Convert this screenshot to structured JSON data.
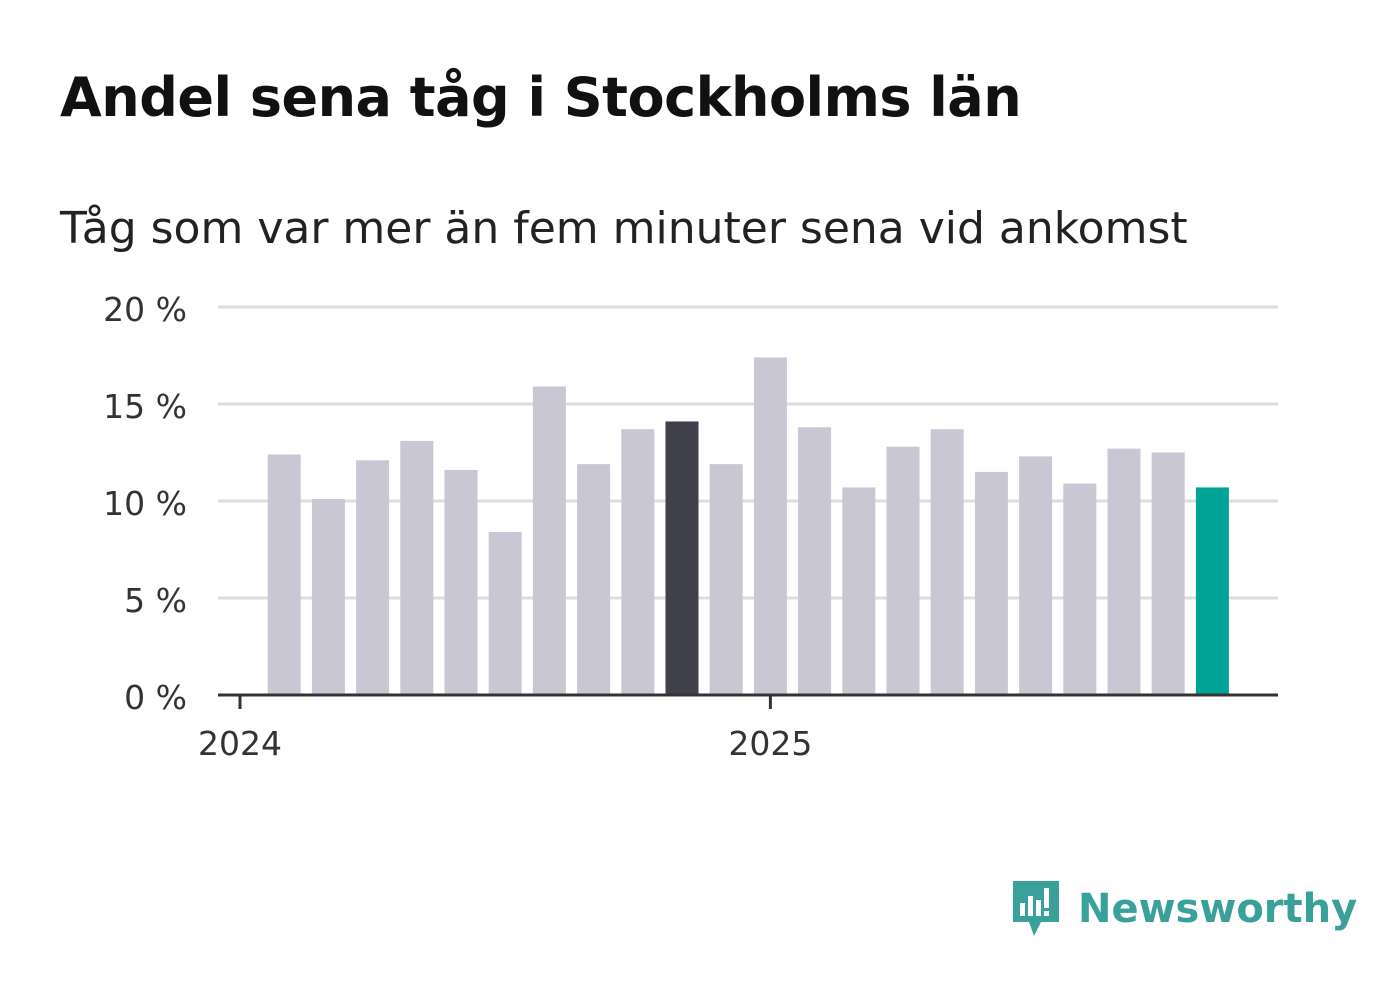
{
  "title": "Andel sena tåg i Stockholms län",
  "subtitle": "Tåg som var mer än fem minuter sena vid ankomst",
  "brand": {
    "name": "Newsworthy",
    "color": "#3aa09a",
    "icon": "newsworthy-logo-icon"
  },
  "colors": {
    "bar": "#c9c7d3",
    "highlight_dark": "#403f4c",
    "highlight_accent": "#00a497",
    "grid": "#dddddd",
    "axis": "#333333"
  },
  "chart_data": {
    "type": "bar",
    "title": "Andel sena tåg i Stockholms län",
    "subtitle": "Tåg som var mer än fem minuter sena vid ankomst",
    "xlabel": "",
    "ylabel": "",
    "ylim": [
      0,
      20
    ],
    "yticks": [
      0,
      5,
      10,
      15,
      20
    ],
    "ytick_labels": [
      "0 %",
      "5 %",
      "10 %",
      "15 %",
      "20 %"
    ],
    "xtick_labels": [
      {
        "label": "2024",
        "month_index": 0
      },
      {
        "label": "2025",
        "month_index": 12
      }
    ],
    "categories": [
      "2024-02",
      "2024-03",
      "2024-04",
      "2024-05",
      "2024-06",
      "2024-07",
      "2024-08",
      "2024-09",
      "2024-10",
      "2024-11",
      "2024-12",
      "2025-01",
      "2025-02",
      "2025-03",
      "2025-04",
      "2025-05",
      "2025-06",
      "2025-07",
      "2025-08",
      "2025-09",
      "2025-10",
      "2025-11"
    ],
    "month_index": [
      1,
      2,
      3,
      4,
      5,
      6,
      7,
      8,
      9,
      10,
      11,
      12,
      13,
      14,
      15,
      16,
      17,
      18,
      19,
      20,
      21,
      22
    ],
    "values": [
      12.4,
      10.1,
      12.1,
      13.1,
      11.6,
      8.4,
      15.9,
      11.9,
      13.7,
      14.1,
      11.9,
      17.4,
      13.8,
      10.7,
      12.8,
      13.7,
      11.5,
      12.3,
      10.9,
      12.7,
      12.5,
      10.7
    ],
    "highlights": [
      {
        "index": 9,
        "color_key": "highlight_dark"
      },
      {
        "index": 21,
        "color_key": "highlight_accent"
      }
    ],
    "grid": true
  }
}
